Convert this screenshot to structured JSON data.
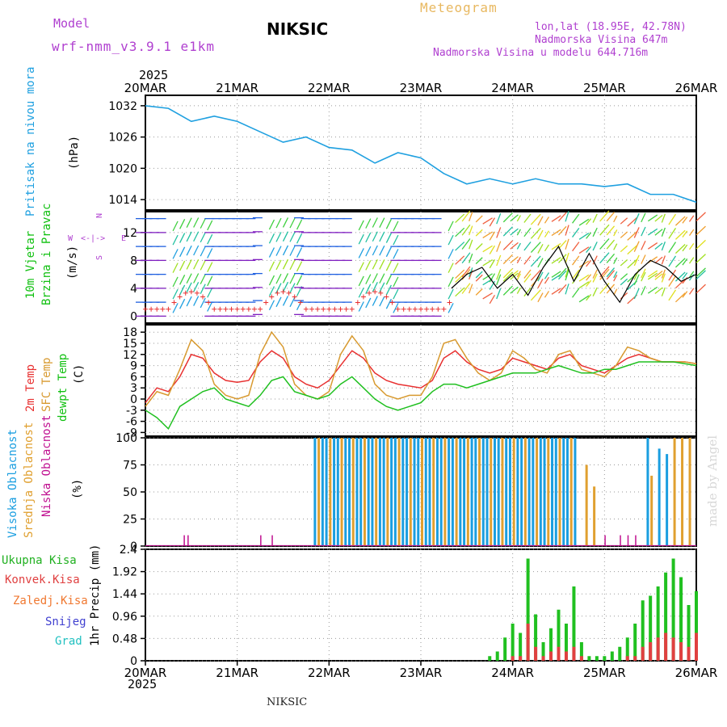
{
  "header": {
    "model_label": "Model",
    "model_name": "wrf-nmm_v3.9.1 e1km",
    "station": "NIKSIC",
    "chart_title": "Meteogram",
    "coords": "lon,lat (18.95E, 42.78N)",
    "elevation": "Nadmorska Visina 647m",
    "model_elevation": "Nadmorska Visina u modelu 644.716m",
    "footer_station": "NIKSIC",
    "watermark": "made by Angel"
  },
  "time_axis": {
    "year": "2025",
    "ticks": [
      "20MAR",
      "21MAR",
      "22MAR",
      "23MAR",
      "24MAR",
      "25MAR",
      "26MAR"
    ]
  },
  "colors": {
    "pressure": "#1fa0e0",
    "temp2m": "#e83030",
    "sfc_temp": "#d89a30",
    "dewpt": "#20c020",
    "wind_speed": "#000000",
    "cloud_high": "#1a9ee0",
    "cloud_mid": "#e0a030",
    "cloud_low": "#c01090",
    "total_precip": "#20c020",
    "conv_precip": "#e04040",
    "frozen_precip": "#f07830",
    "snow": "#4040d0",
    "hail": "#20c0c0",
    "panel_label_pressure": "#1fa0e0",
    "panel_label_wind": "#10c010",
    "wind_dir_label": "#b040d0"
  },
  "panels": {
    "pressure": {
      "ylabel": "Pritisak na nivou mora",
      "unit": "(hPa)",
      "yticks": [
        "1014",
        "1020",
        "1026",
        "1032"
      ]
    },
    "wind": {
      "ylabel_1": "10m Vjetar",
      "ylabel_2": "Brzina i Pravac",
      "unit": "(m/s)",
      "yticks": [
        "0",
        "4",
        "8",
        "12"
      ],
      "dir_n": "N",
      "dir_s": "S",
      "dir_w": "W",
      "dir_e": "E",
      "dir_cross": "<-|->"
    },
    "temp": {
      "label_2m": "2m Temp",
      "label_sfc": "SFC Temp",
      "label_dew": "dewpt Temp",
      "unit": "(C)",
      "yticks": [
        "-9",
        "-6",
        "-3",
        "0",
        "3",
        "6",
        "9",
        "12",
        "15",
        "18"
      ]
    },
    "cloud": {
      "label_high": "Visoka Oblacnost",
      "label_mid": "Srednja Oblacnost",
      "label_low": "Niska Oblacnost",
      "unit": "(%)",
      "yticks": [
        "0",
        "25",
        "50",
        "75",
        "100"
      ]
    },
    "precip": {
      "legend": [
        "Ukupna Kisa",
        "Konvek.Kisa",
        "Zaledj.Kisa",
        "Snijeg",
        "Grad"
      ],
      "ylabel": "1hr Precip (mm)",
      "yticks": [
        "0",
        "0.48",
        "0.96",
        "1.44",
        "1.92",
        "2.4"
      ]
    }
  },
  "chart_data": [
    {
      "type": "line",
      "name": "pressure",
      "x_hours": [
        0,
        6,
        12,
        18,
        24,
        30,
        36,
        42,
        48,
        54,
        60,
        66,
        72,
        78,
        84,
        90,
        96,
        102,
        108,
        114,
        120,
        126,
        132,
        138,
        144
      ],
      "series": [
        {
          "name": "Pritisak na nivou mora",
          "values": [
            1032,
            1031.5,
            1029,
            1030,
            1029,
            1027,
            1025,
            1026,
            1024,
            1023.5,
            1021,
            1023,
            1022,
            1019,
            1017,
            1018,
            1017,
            1018,
            1017,
            1017,
            1016.5,
            1017,
            1015,
            1015,
            1013.5
          ]
        }
      ],
      "ylim": [
        1012,
        1034
      ]
    },
    {
      "type": "line",
      "name": "temperature",
      "x_hours": [
        0,
        3,
        6,
        9,
        12,
        15,
        18,
        21,
        24,
        27,
        30,
        33,
        36,
        39,
        42,
        45,
        48,
        51,
        54,
        57,
        60,
        63,
        66,
        69,
        72,
        75,
        78,
        81,
        84,
        87,
        90,
        93,
        96,
        99,
        102,
        105,
        108,
        111,
        114,
        117,
        120,
        123,
        126,
        129,
        132,
        135,
        138,
        141,
        144
      ],
      "series": [
        {
          "name": "2m Temp",
          "values": [
            -1,
            3,
            2,
            6,
            12,
            11,
            7,
            5,
            4.5,
            5,
            10,
            13,
            11,
            6,
            4,
            3,
            5,
            9,
            13,
            11,
            7,
            5,
            4,
            3.5,
            3,
            5,
            11,
            13,
            10,
            8,
            7,
            8,
            11,
            10,
            9,
            8,
            11,
            12,
            9,
            8,
            7,
            9,
            11,
            12,
            11,
            10,
            10,
            10,
            9.5
          ]
        },
        {
          "name": "SFC Temp",
          "values": [
            -2,
            2,
            1,
            8,
            16,
            13,
            4,
            1,
            0,
            1,
            12,
            18,
            14,
            4,
            1,
            0,
            2,
            12,
            17,
            13,
            4,
            1,
            0,
            1,
            1,
            6,
            15,
            16,
            11,
            7,
            5,
            7,
            13,
            11,
            8,
            7,
            12,
            13,
            8,
            7,
            6,
            9,
            14,
            13,
            11,
            10,
            10,
            10,
            9.5
          ]
        },
        {
          "name": "dewpt Temp",
          "values": [
            -3,
            -5,
            -8,
            -2,
            0,
            2,
            3,
            0,
            -1,
            -2,
            1,
            5,
            6,
            2,
            1,
            0,
            1,
            4,
            6,
            3,
            0,
            -2,
            -3,
            -2,
            -1,
            2,
            4,
            4,
            3,
            4,
            5,
            6,
            7,
            7,
            7,
            8,
            9,
            8,
            7,
            7,
            8,
            8,
            9,
            10,
            10,
            10,
            10,
            9.5,
            9
          ]
        }
      ],
      "ylim": [
        -10,
        20
      ]
    },
    {
      "type": "line",
      "name": "wind_speed",
      "x_hours": [
        80,
        84,
        88,
        92,
        96,
        100,
        104,
        108,
        112,
        116,
        120,
        124,
        128,
        132,
        136,
        140,
        144
      ],
      "series": [
        {
          "name": "10m wind speed",
          "values": [
            4,
            6,
            7,
            4,
            6,
            3,
            7,
            10,
            5,
            9,
            5,
            2,
            6,
            8,
            7,
            5,
            6
          ]
        }
      ],
      "ylim": [
        -1,
        15
      ]
    },
    {
      "type": "bar",
      "name": "cloud_cover",
      "description_levels": [
        "high",
        "mid",
        "low"
      ],
      "series": [
        {
          "name": "Visoka Oblacnost",
          "start_hour": 44,
          "end_hour": 112,
          "values_pct": 100
        },
        {
          "name": "Srednja Oblacnost",
          "start_hour": 44,
          "end_hour": 112,
          "values_pct": 100
        },
        {
          "name": "Niska Oblacnost",
          "start_hour": 10,
          "end_hour": 144,
          "values_pct": 10
        }
      ],
      "ylim": [
        0,
        100
      ]
    },
    {
      "type": "bar",
      "name": "precipitation",
      "x_hours": [
        90,
        92,
        94,
        96,
        98,
        100,
        102,
        104,
        106,
        108,
        110,
        112,
        114,
        116,
        118,
        120,
        122,
        124,
        126,
        128,
        130,
        132,
        134,
        136,
        138,
        140,
        142,
        144
      ],
      "series": [
        {
          "name": "Ukupna Kisa",
          "values": [
            0.1,
            0.2,
            0.5,
            0.8,
            0.6,
            2.2,
            1.0,
            0.4,
            0.7,
            1.1,
            0.8,
            1.6,
            0.4,
            0.1,
            0.1,
            0.1,
            0.2,
            0.3,
            0.5,
            0.8,
            1.3,
            1.4,
            1.6,
            1.9,
            2.2,
            1.8,
            1.2,
            1.5
          ]
        },
        {
          "name": "Konvek.Kisa",
          "values": [
            0,
            0,
            0,
            0.1,
            0.1,
            0.8,
            0.3,
            0.1,
            0.2,
            0.3,
            0.2,
            0.3,
            0.1,
            0,
            0,
            0,
            0,
            0,
            0.1,
            0.1,
            0.3,
            0.4,
            0.5,
            0.6,
            0.5,
            0.4,
            0.3,
            0.6
          ]
        }
      ],
      "ylim": [
        0,
        2.4
      ]
    }
  ]
}
